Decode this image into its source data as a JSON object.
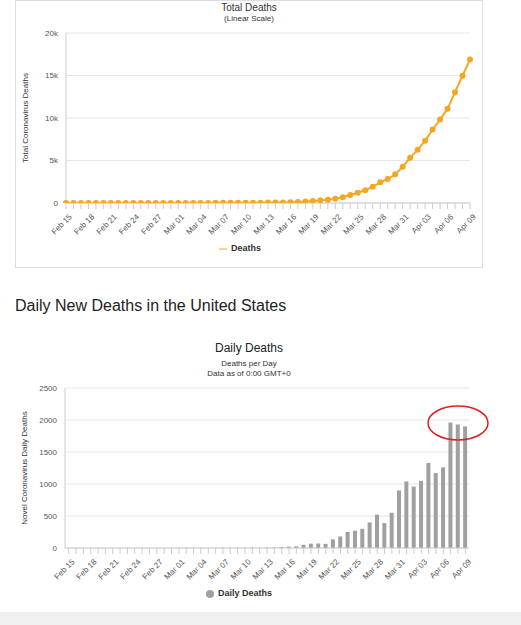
{
  "heading": "Daily New Deaths in the United States",
  "chart_data": [
    {
      "type": "line",
      "title": "Total Deaths",
      "subtitle": "(Linear Scale)",
      "y_label": "Total Coronavirus Deaths",
      "categories": [
        "Feb 15",
        null,
        null,
        "Feb 18",
        null,
        null,
        "Feb 21",
        null,
        null,
        "Feb 24",
        null,
        null,
        "Feb 27",
        null,
        null,
        "Mar 01",
        null,
        null,
        "Mar 04",
        null,
        null,
        "Mar 07",
        null,
        null,
        "Mar 10",
        null,
        null,
        "Mar 13",
        null,
        null,
        "Mar 16",
        null,
        null,
        "Mar 19",
        null,
        null,
        "Mar 22",
        null,
        null,
        "Mar 25",
        null,
        null,
        "Mar 28",
        null,
        null,
        "Mar 31",
        null,
        null,
        "Apr 03",
        null,
        null,
        "Apr 06",
        null,
        null,
        "Apr 09"
      ],
      "series": [
        {
          "name": "Deaths",
          "color": "#f5a623",
          "marker": "circle",
          "values": [
            0,
            0,
            0,
            0,
            0,
            0,
            0,
            0,
            0,
            0,
            0,
            0,
            0,
            0,
            1,
            1,
            6,
            9,
            11,
            12,
            15,
            19,
            22,
            26,
            30,
            38,
            41,
            48,
            58,
            73,
            95,
            121,
            171,
            239,
            309,
            374,
            509,
            689,
            939,
            1209,
            1509,
            1909,
            2429,
            2819,
            3369,
            4269,
            5309,
            6269,
            7319,
            8649,
            9819,
            11079,
            13039,
            14969,
            16869
          ]
        }
      ],
      "ylim": [
        0,
        20000
      ],
      "yticks": [
        0,
        {
          "value": 5000,
          "label": "5k"
        },
        {
          "value": 10000,
          "label": "10k"
        },
        {
          "value": 15000,
          "label": "15k"
        },
        {
          "value": 20000,
          "label": "20k"
        }
      ],
      "grid": true,
      "legend": "bottom"
    },
    {
      "type": "bar",
      "title": "Daily Deaths",
      "subtitle": [
        "Deaths per Day",
        "Data as of 0:00 GMT+0"
      ],
      "y_label": "Novel Coronavirus Daily Deaths",
      "categories": [
        "Feb 15",
        null,
        null,
        "Feb 18",
        null,
        null,
        "Feb 21",
        null,
        null,
        "Feb 24",
        null,
        null,
        "Feb 27",
        null,
        null,
        "Mar 01",
        null,
        null,
        "Mar 04",
        null,
        null,
        "Mar 07",
        null,
        null,
        "Mar 10",
        null,
        null,
        "Mar 13",
        null,
        null,
        "Mar 16",
        null,
        null,
        "Mar 19",
        null,
        null,
        "Mar 22",
        null,
        null,
        "Mar 25",
        null,
        null,
        "Mar 28",
        null,
        null,
        "Mar 31",
        null,
        null,
        "Apr 03",
        null,
        null,
        "Apr 06",
        null,
        null,
        "Apr 09"
      ],
      "series": [
        {
          "name": "Daily Deaths",
          "color": "#a0a0a0",
          "values": [
            0,
            0,
            0,
            0,
            0,
            0,
            0,
            0,
            0,
            0,
            0,
            0,
            0,
            0,
            1,
            0,
            5,
            3,
            2,
            1,
            3,
            4,
            3,
            4,
            4,
            8,
            3,
            7,
            10,
            15,
            22,
            26,
            50,
            68,
            70,
            65,
            135,
            180,
            250,
            270,
            300,
            400,
            520,
            390,
            550,
            900,
            1040,
            960,
            1050,
            1330,
            1170,
            1260,
            1960,
            1930,
            1900
          ]
        }
      ],
      "ylim": [
        0,
        2500
      ],
      "yticks": [
        0,
        500,
        1000,
        1500,
        2000,
        2500
      ],
      "grid": true,
      "legend": "bottom"
    }
  ]
}
